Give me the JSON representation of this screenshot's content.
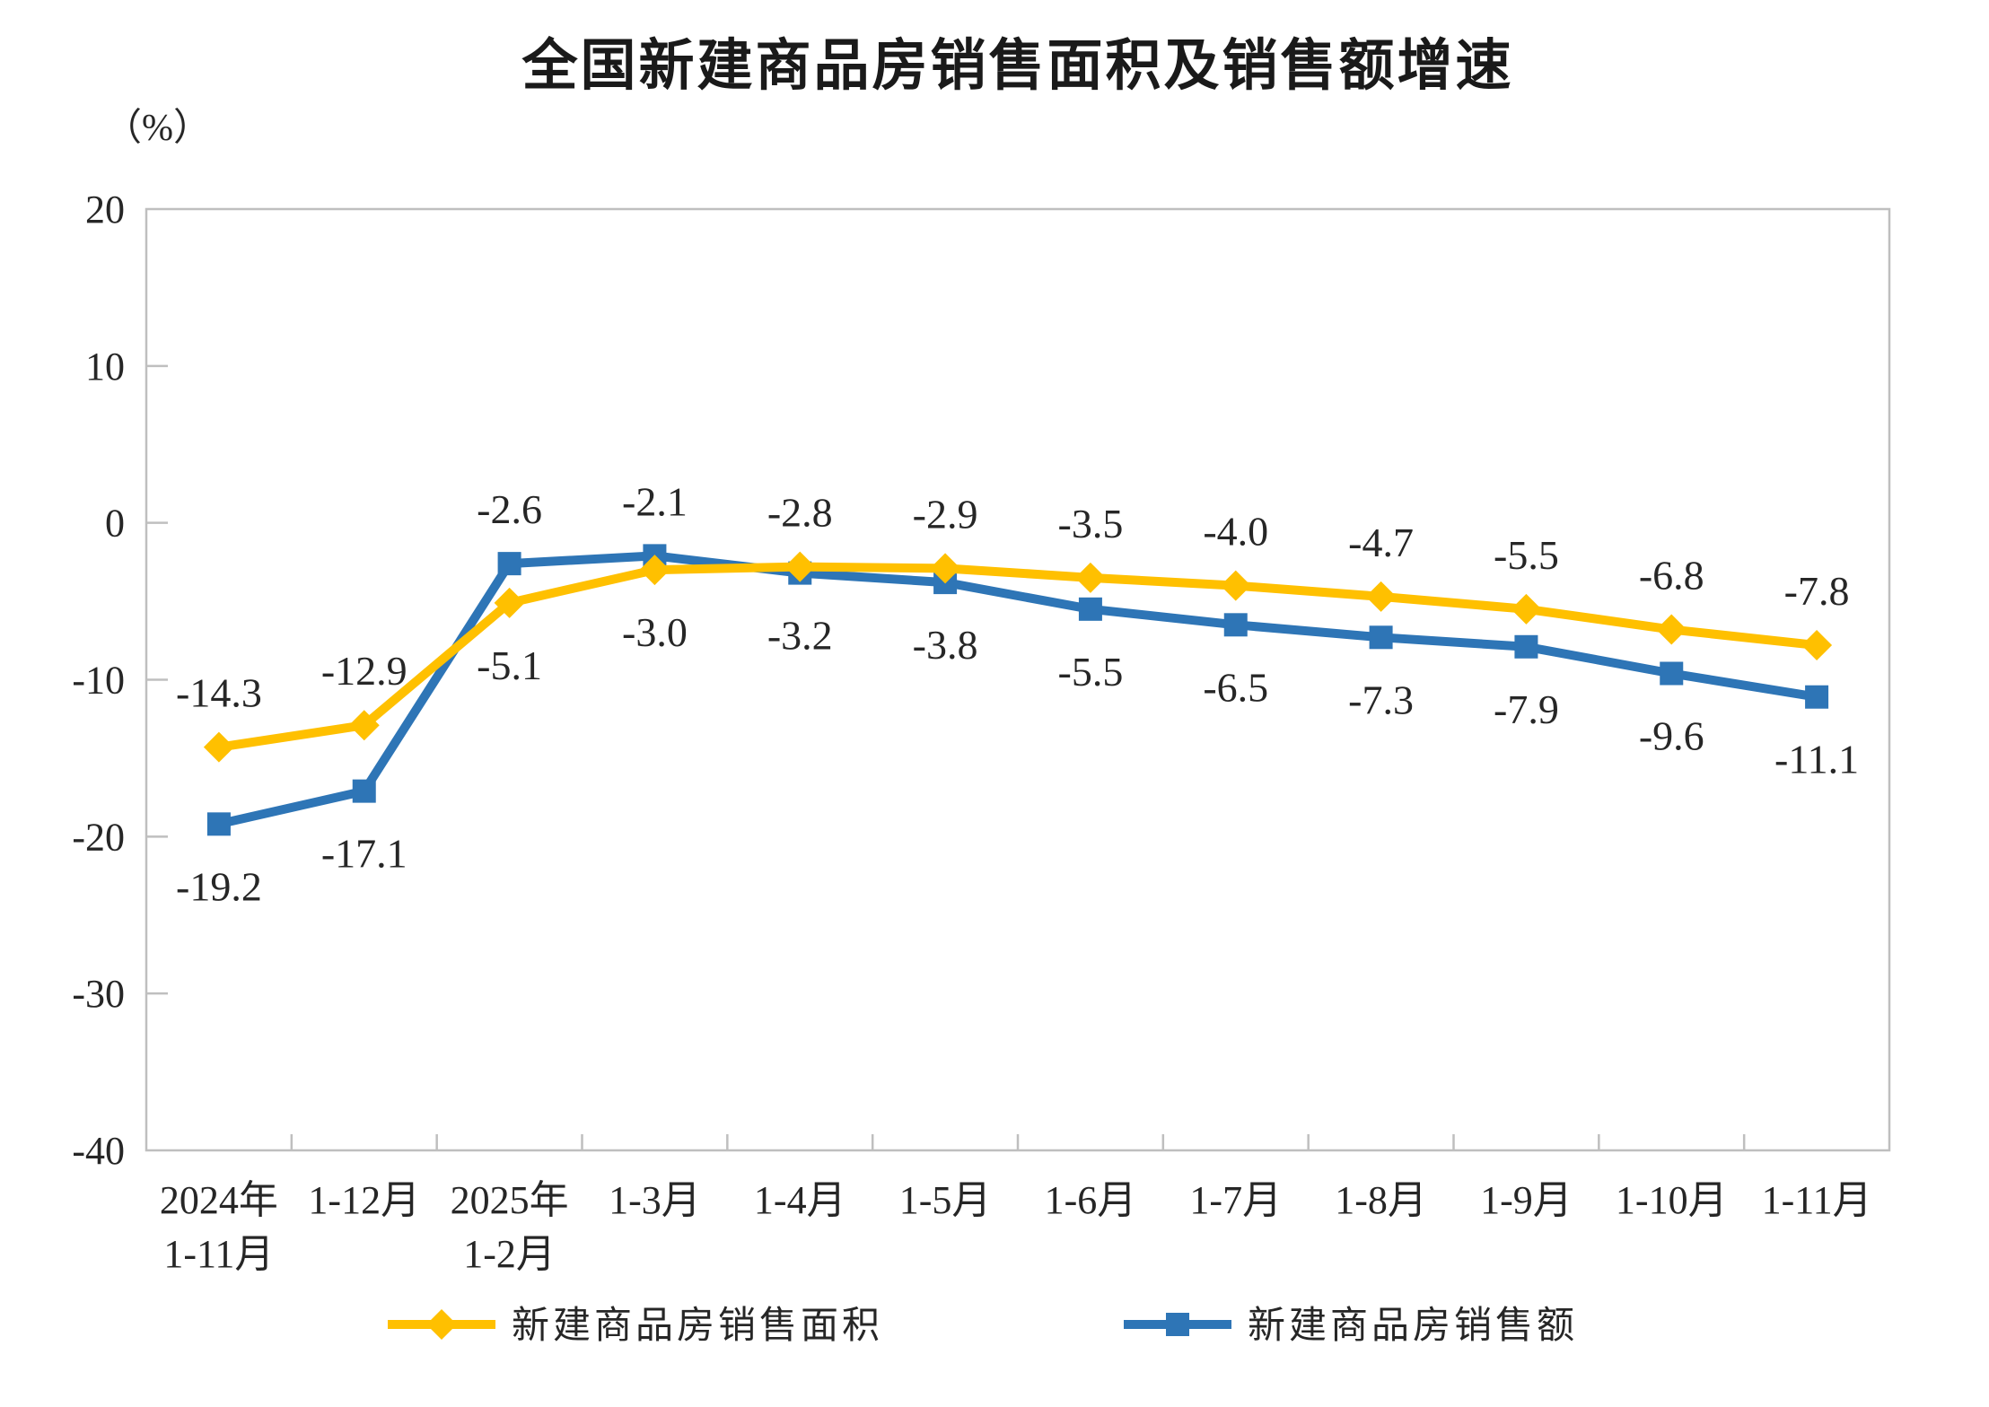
{
  "page": {
    "title": "全国新建商品房销售面积及销售额增速",
    "unit_label": "（%）"
  },
  "chart_data": {
    "type": "line",
    "title": "全国新建商品房销售面积及销售额增速",
    "unit": "（%）",
    "categories": [
      [
        "2024年",
        "1-11月"
      ],
      [
        "1-12月"
      ],
      [
        "2025年",
        "1-2月"
      ],
      [
        "1-3月"
      ],
      [
        "1-4月"
      ],
      [
        "1-5月"
      ],
      [
        "1-6月"
      ],
      [
        "1-7月"
      ],
      [
        "1-8月"
      ],
      [
        "1-9月"
      ],
      [
        "1-10月"
      ],
      [
        "1-11月"
      ]
    ],
    "series": [
      {
        "name": "新建商品房销售面积",
        "color": "#FFC000",
        "marker": "diamond",
        "values": [
          -14.3,
          -12.9,
          -5.1,
          -3.0,
          -2.8,
          -2.9,
          -3.5,
          -4.0,
          -4.7,
          -5.5,
          -6.8,
          -7.8
        ]
      },
      {
        "name": "新建商品房销售额",
        "color": "#2E75B6",
        "marker": "square",
        "values": [
          -19.2,
          -17.1,
          -2.6,
          -2.1,
          -3.2,
          -3.8,
          -5.5,
          -6.5,
          -7.3,
          -7.9,
          -9.6,
          -11.1
        ]
      }
    ],
    "ylim": [
      -40,
      20
    ],
    "yticks": [
      20,
      10,
      0,
      -10,
      -20,
      -30,
      -40
    ],
    "grid": false,
    "data_labels": true,
    "legend_position": "bottom",
    "axis_color": "#BFBFBF",
    "text_color": "#262626"
  }
}
